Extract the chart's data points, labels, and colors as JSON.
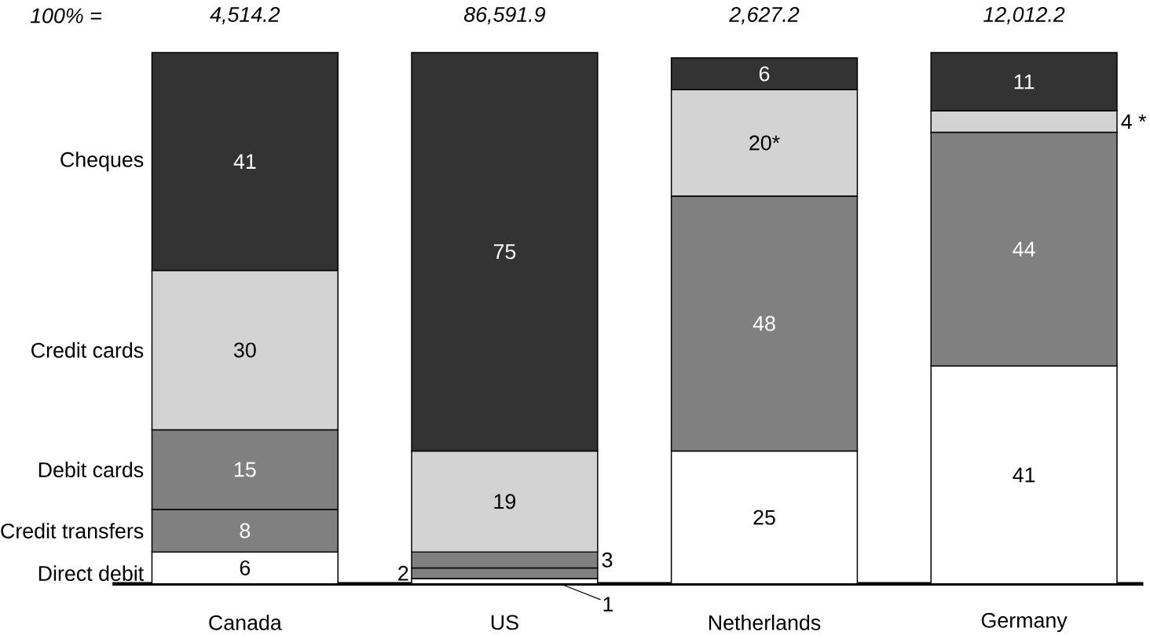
{
  "chart_data": {
    "type": "bar",
    "stacked": true,
    "categories": [
      "Canada",
      "US",
      "Netherlands",
      "Germany"
    ],
    "series": [
      {
        "name": "Direct debit",
        "color": "#ffffff",
        "values": [
          6,
          1,
          25,
          41
        ]
      },
      {
        "name": "Credit transfers",
        "color": "#808080",
        "values": [
          8,
          2,
          48,
          44
        ]
      },
      {
        "name": "Debit cards",
        "color": "#808080",
        "values": [
          15,
          3,
          null,
          null
        ]
      },
      {
        "name": "Credit cards",
        "color": "#d3d3d3",
        "values": [
          30,
          19,
          20,
          4
        ],
        "value_labels": [
          "30",
          "19",
          "20*",
          "4 *"
        ]
      },
      {
        "name": "Cheques",
        "color": "#333333",
        "values": [
          41,
          75,
          6,
          11
        ]
      }
    ],
    "data_labels": true,
    "annotations": [
      "100% =",
      "4,514.2",
      "86,591.9",
      "2,627.2",
      "12,012.2"
    ]
  }
}
